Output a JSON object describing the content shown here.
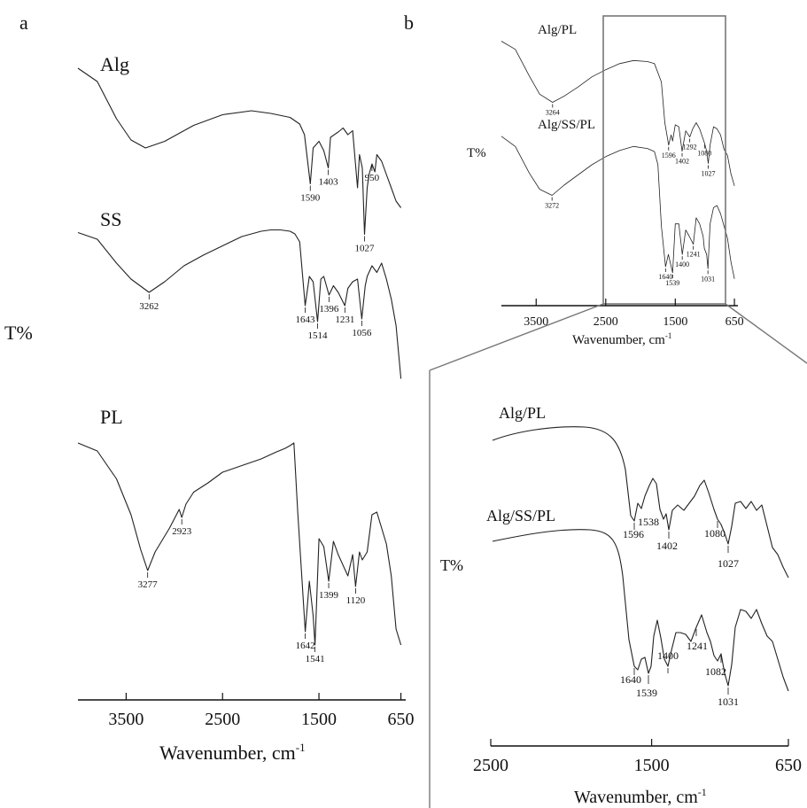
{
  "chart_data": [
    {
      "panel": "a",
      "type": "line",
      "ylabel": "T%",
      "xlabel": "Wavenumber, cm",
      "xlabel_sup": "-1",
      "xlim": [
        4000,
        600
      ],
      "x_ticks": [
        "3500",
        "2500",
        "1500",
        "650"
      ],
      "series": [
        {
          "name": "Alg",
          "peaks": [
            "1590",
            "1403",
            "1027",
            "950"
          ],
          "x": [
            4000,
            3800,
            3600,
            3450,
            3300,
            3100,
            2800,
            2500,
            2200,
            2000,
            1800,
            1700,
            1650,
            1590,
            1560,
            1500,
            1450,
            1403,
            1380,
            1300,
            1250,
            1200,
            1150,
            1100,
            1080,
            1050,
            1027,
            1000,
            980,
            950,
            920,
            900,
            850,
            800,
            750,
            700,
            650
          ],
          "y": [
            10,
            20,
            48,
            64,
            70,
            65,
            53,
            45,
            42,
            44,
            47,
            52,
            60,
            97,
            70,
            65,
            72,
            85,
            62,
            58,
            55,
            60,
            57,
            100,
            75,
            85,
            135,
            100,
            90,
            82,
            88,
            75,
            80,
            90,
            100,
            110,
            115
          ]
        },
        {
          "name": "SS",
          "peaks": [
            "3262",
            "1643",
            "1514",
            "1396",
            "1231",
            "1056"
          ],
          "x": [
            4000,
            3800,
            3600,
            3450,
            3262,
            3100,
            2900,
            2700,
            2500,
            2300,
            2100,
            2000,
            1900,
            1800,
            1750,
            1700,
            1643,
            1600,
            1560,
            1514,
            1480,
            1450,
            1396,
            1350,
            1300,
            1231,
            1200,
            1150,
            1100,
            1056,
            1020,
            1000,
            950,
            900,
            850,
            800,
            750,
            700,
            650
          ],
          "y": [
            5,
            10,
            28,
            40,
            50,
            42,
            30,
            22,
            15,
            8,
            4,
            3,
            3,
            4,
            6,
            12,
            60,
            38,
            42,
            72,
            40,
            38,
            52,
            45,
            50,
            60,
            47,
            42,
            40,
            70,
            45,
            38,
            30,
            35,
            28,
            40,
            55,
            75,
            115
          ]
        },
        {
          "name": "PL",
          "peaks": [
            "3277",
            "2923",
            "1642",
            "1541",
            "1399",
            "1120"
          ],
          "x": [
            4000,
            3800,
            3600,
            3450,
            3350,
            3277,
            3200,
            3050,
            2950,
            2923,
            2880,
            2800,
            2650,
            2500,
            2300,
            2100,
            1950,
            1850,
            1800,
            1760,
            1720,
            1642,
            1600,
            1560,
            1541,
            1500,
            1450,
            1399,
            1350,
            1300,
            1200,
            1150,
            1120,
            1080,
            1050,
            1000,
            950,
            900,
            850,
            800,
            750,
            700,
            650
          ],
          "y": [
            8,
            14,
            35,
            62,
            88,
            104,
            90,
            72,
            58,
            64,
            54,
            45,
            38,
            30,
            25,
            20,
            15,
            12,
            10,
            8,
            60,
            150,
            112,
            138,
            160,
            80,
            86,
            112,
            82,
            92,
            108,
            92,
            116,
            90,
            96,
            90,
            62,
            60,
            72,
            84,
            108,
            148,
            160
          ]
        }
      ]
    },
    {
      "panel": "b",
      "type": "line",
      "ylabel": "T%",
      "xlabel": "Wavenumber, cm",
      "xlabel_sup": "-1",
      "xlim": [
        4000,
        600
      ],
      "x_ticks": [
        "3500",
        "2500",
        "1500",
        "650"
      ],
      "series": [
        {
          "name": "Alg/PL",
          "peaks": [
            "3264",
            "1596",
            "1402",
            "1292",
            "1080",
            "1027"
          ],
          "x": [
            4000,
            3800,
            3600,
            3450,
            3264,
            3100,
            2900,
            2700,
            2500,
            2300,
            2100,
            1900,
            1800,
            1700,
            1650,
            1596,
            1560,
            1538,
            1500,
            1450,
            1402,
            1350,
            1292,
            1250,
            1200,
            1150,
            1080,
            1050,
            1027,
            1000,
            950,
            900,
            850,
            800,
            750,
            700,
            650
          ],
          "y": [
            10,
            18,
            44,
            62,
            70,
            64,
            55,
            45,
            38,
            32,
            29,
            30,
            32,
            50,
            90,
            112,
            102,
            108,
            92,
            94,
            118,
            98,
            104,
            96,
            90,
            96,
            110,
            118,
            130,
            112,
            94,
            96,
            102,
            116,
            122,
            140,
            152
          ]
        },
        {
          "name": "Alg/SS/PL",
          "peaks": [
            "3272",
            "1640",
            "1539",
            "1400",
            "1241",
            "1031"
          ],
          "x": [
            4000,
            3800,
            3600,
            3450,
            3272,
            3100,
            2900,
            2700,
            2500,
            2300,
            2100,
            1900,
            1800,
            1750,
            1700,
            1640,
            1600,
            1539,
            1500,
            1450,
            1400,
            1350,
            1300,
            1241,
            1200,
            1150,
            1100,
            1082,
            1050,
            1031,
            1000,
            950,
            900,
            850,
            800,
            750,
            700,
            650
          ],
          "y": [
            12,
            22,
            48,
            64,
            70,
            60,
            50,
            40,
            32,
            26,
            22,
            24,
            27,
            40,
            100,
            140,
            128,
            146,
            98,
            98,
            128,
            104,
            110,
            118,
            92,
            98,
            110,
            122,
            128,
            142,
            98,
            82,
            80,
            88,
            100,
            112,
            135,
            152
          ]
        }
      ]
    },
    {
      "panel": "b-zoom",
      "type": "line",
      "ylabel": "T%",
      "xlabel": "Wavenumber, cm",
      "xlabel_sup": "-1",
      "xlim": [
        2500,
        650
      ],
      "x_ticks": [
        "2500",
        "1500",
        "650"
      ],
      "series": [
        {
          "name": "Alg/PL",
          "peaks": [
            "1596",
            "1538",
            "1402",
            "1080",
            "1027"
          ]
        },
        {
          "name": "Alg/SS/PL",
          "peaks": [
            "1640",
            "1539",
            "1400",
            "1241",
            "1082",
            "1031"
          ]
        }
      ]
    }
  ],
  "panel_letters": {
    "a": "a",
    "b": "b"
  }
}
